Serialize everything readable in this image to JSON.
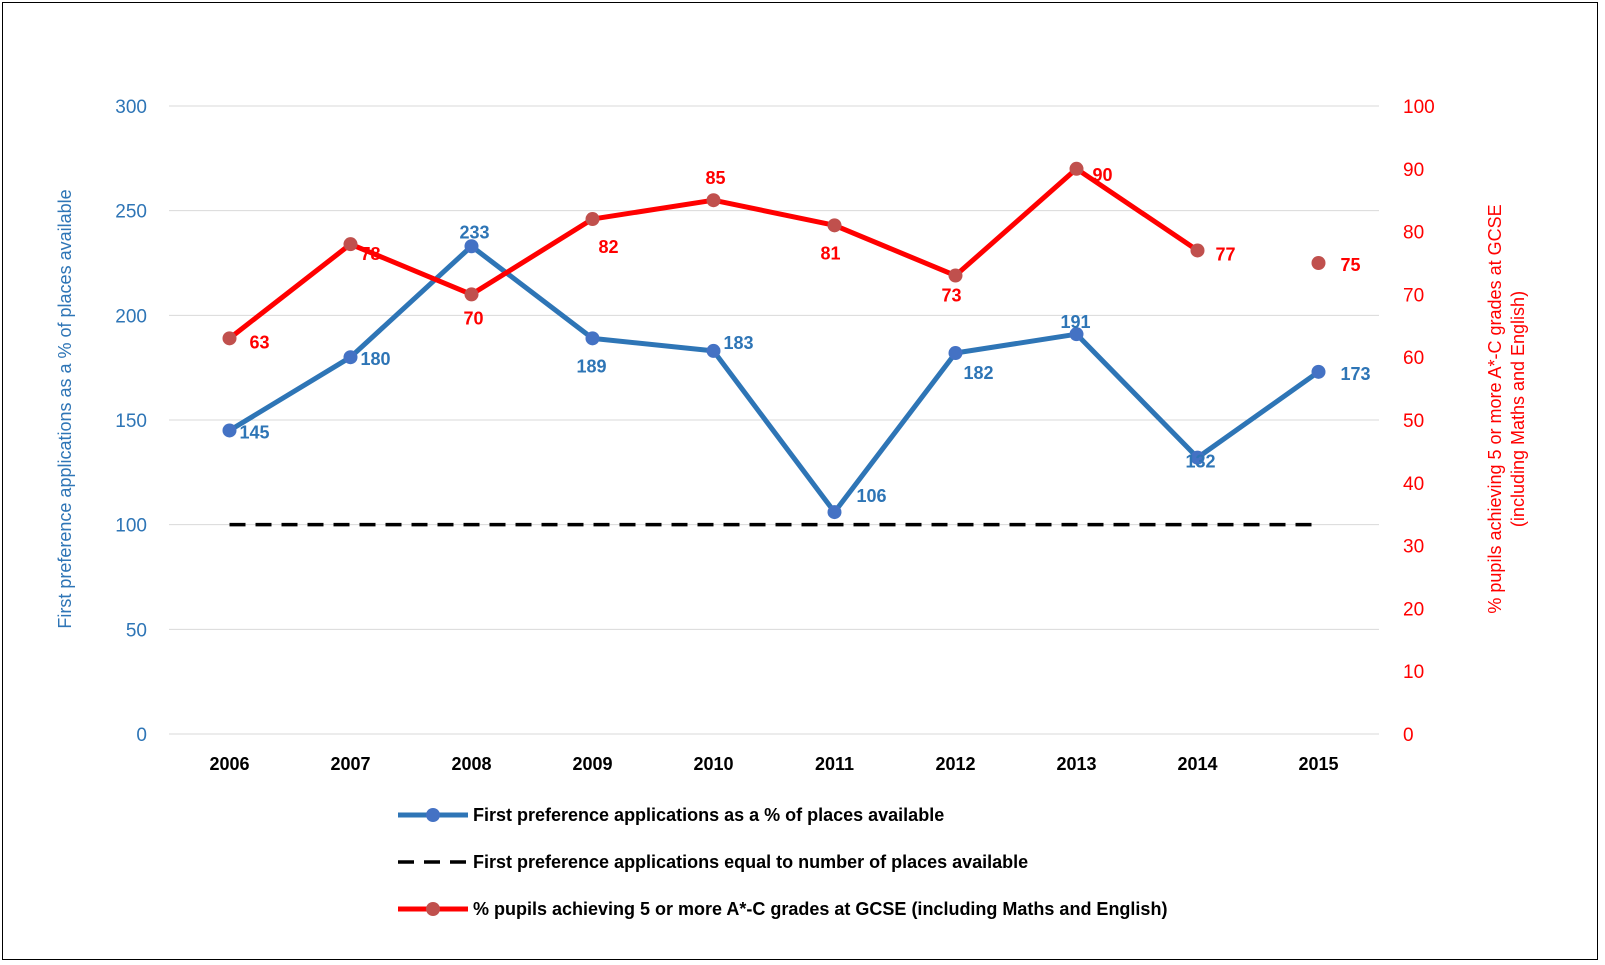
{
  "chart_data": {
    "type": "line",
    "categories": [
      "2006",
      "2007",
      "2008",
      "2009",
      "2010",
      "2011",
      "2012",
      "2013",
      "2014",
      "2015"
    ],
    "y_left": {
      "label": "First preference applications as a % of places available",
      "ylim": [
        0,
        300
      ],
      "ticks": [
        "0",
        "50",
        "100",
        "150",
        "200",
        "250",
        "300"
      ],
      "color": "#2E75B6"
    },
    "y_right": {
      "label_line1": "% pupils achieving 5 or more A*-C grades at GCSE",
      "label_line2": "(including Maths and English)",
      "ylim": [
        0,
        100
      ],
      "ticks": [
        "0",
        "10",
        "20",
        "30",
        "40",
        "50",
        "60",
        "70",
        "80",
        "90",
        "100"
      ],
      "color": "#FF0000"
    },
    "grid": "horizontal",
    "legend_position": "bottom",
    "series": [
      {
        "name": "First preference applications as a % of places available",
        "axis": "left",
        "color": "#2E75B6",
        "marker_color": "#4472C4",
        "values": [
          145,
          180,
          233,
          189,
          183,
          106,
          182,
          191,
          132,
          173
        ],
        "labels": [
          "145",
          "180",
          "233",
          "189",
          "183",
          "106",
          "182",
          "191",
          "132",
          "173"
        ]
      },
      {
        "name": "First preference applications equal to number of places available",
        "axis": "left",
        "color": "#000000",
        "style": "dashed",
        "values": [
          100,
          100,
          100,
          100,
          100,
          100,
          100,
          100,
          100,
          100
        ]
      },
      {
        "name": "% pupils achieving 5 or more A*-C grades at GCSE (including Maths and English)",
        "axis": "right",
        "color": "#FF0000",
        "marker_color": "#C0504D",
        "values": [
          63,
          78,
          70,
          82,
          85,
          81,
          73,
          90,
          77,
          75
        ],
        "labels": [
          "63",
          "78",
          "70",
          "82",
          "85",
          "81",
          "73",
          "90",
          "77",
          "75"
        ],
        "connected_through_index": 8
      }
    ]
  }
}
